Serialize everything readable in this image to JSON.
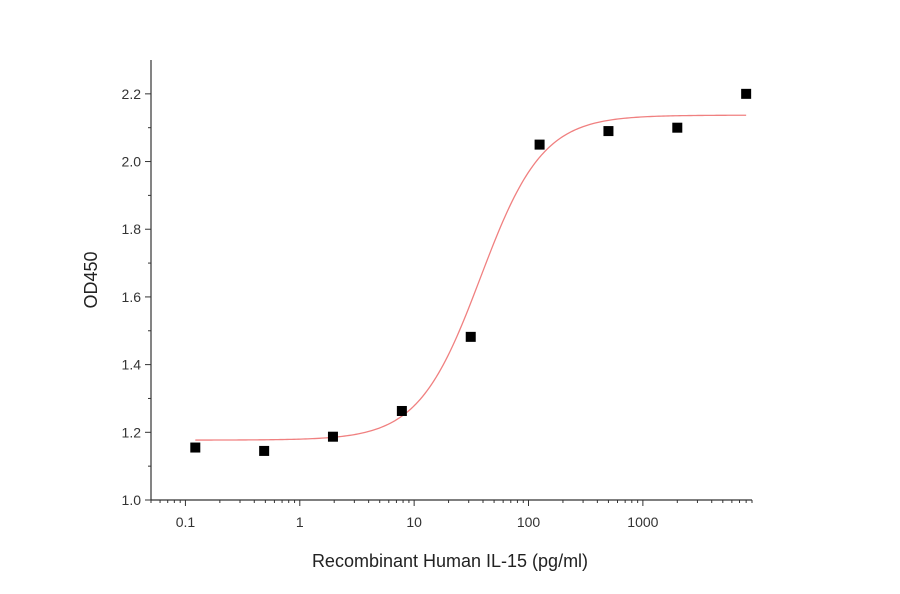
{
  "chart_data": {
    "type": "scatter",
    "title": "",
    "xlabel": "Recombinant Human IL-15 (pg/ml)",
    "ylabel": "OD450",
    "xscale": "log",
    "xlim": [
      0.05,
      9000
    ],
    "ylim": [
      1.0,
      2.3
    ],
    "x_ticks": [
      0.1,
      1,
      10,
      100,
      1000
    ],
    "x_tick_labels": [
      "0.1",
      "1",
      "10",
      "100",
      "1000"
    ],
    "y_ticks": [
      1.0,
      1.2,
      1.4,
      1.6,
      1.8,
      2.0,
      2.2
    ],
    "y_tick_labels": [
      "1.0",
      "1.2",
      "1.4",
      "1.6",
      "1.8",
      "2.0",
      "2.2"
    ],
    "grid": false,
    "legend": "none",
    "series": [
      {
        "type": "scatter",
        "marker": "square",
        "color": "#000000",
        "x": [
          0.122,
          0.488,
          1.95,
          7.81,
          31.25,
          125,
          500,
          2000,
          8000
        ],
        "y": [
          1.155,
          1.145,
          1.187,
          1.263,
          1.482,
          2.05,
          2.09,
          2.1,
          2.2
        ]
      },
      {
        "type": "line",
        "fit": "4PL",
        "color": "#f08080",
        "params": {
          "bottom": 1.177,
          "top": 2.137,
          "ec50": 38,
          "hill": 1.6
        },
        "x_range": [
          0.122,
          8000
        ]
      }
    ]
  }
}
